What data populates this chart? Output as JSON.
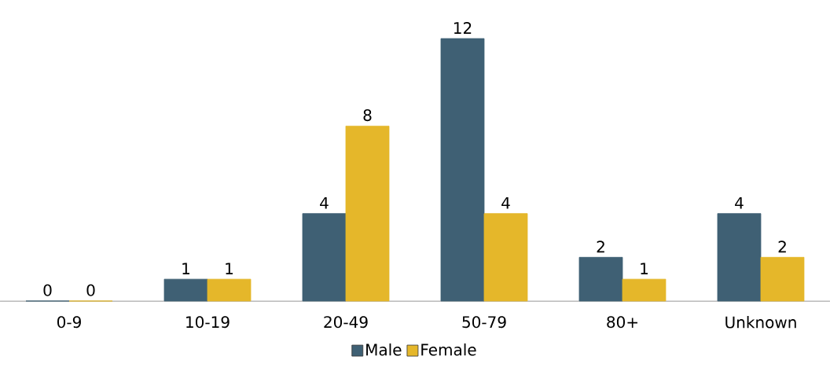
{
  "chart_data": {
    "type": "bar",
    "categories": [
      "0-9",
      "10-19",
      "20-49",
      "50-79",
      "80+",
      "Unknown"
    ],
    "series": [
      {
        "name": "Male",
        "color": "#3f6074",
        "values": [
          0,
          1,
          4,
          12,
          2,
          4
        ]
      },
      {
        "name": "Female",
        "color": "#e5b72a",
        "values": [
          0,
          1,
          8,
          4,
          1,
          2
        ]
      }
    ],
    "data_labels": true,
    "legend": "bottom"
  }
}
